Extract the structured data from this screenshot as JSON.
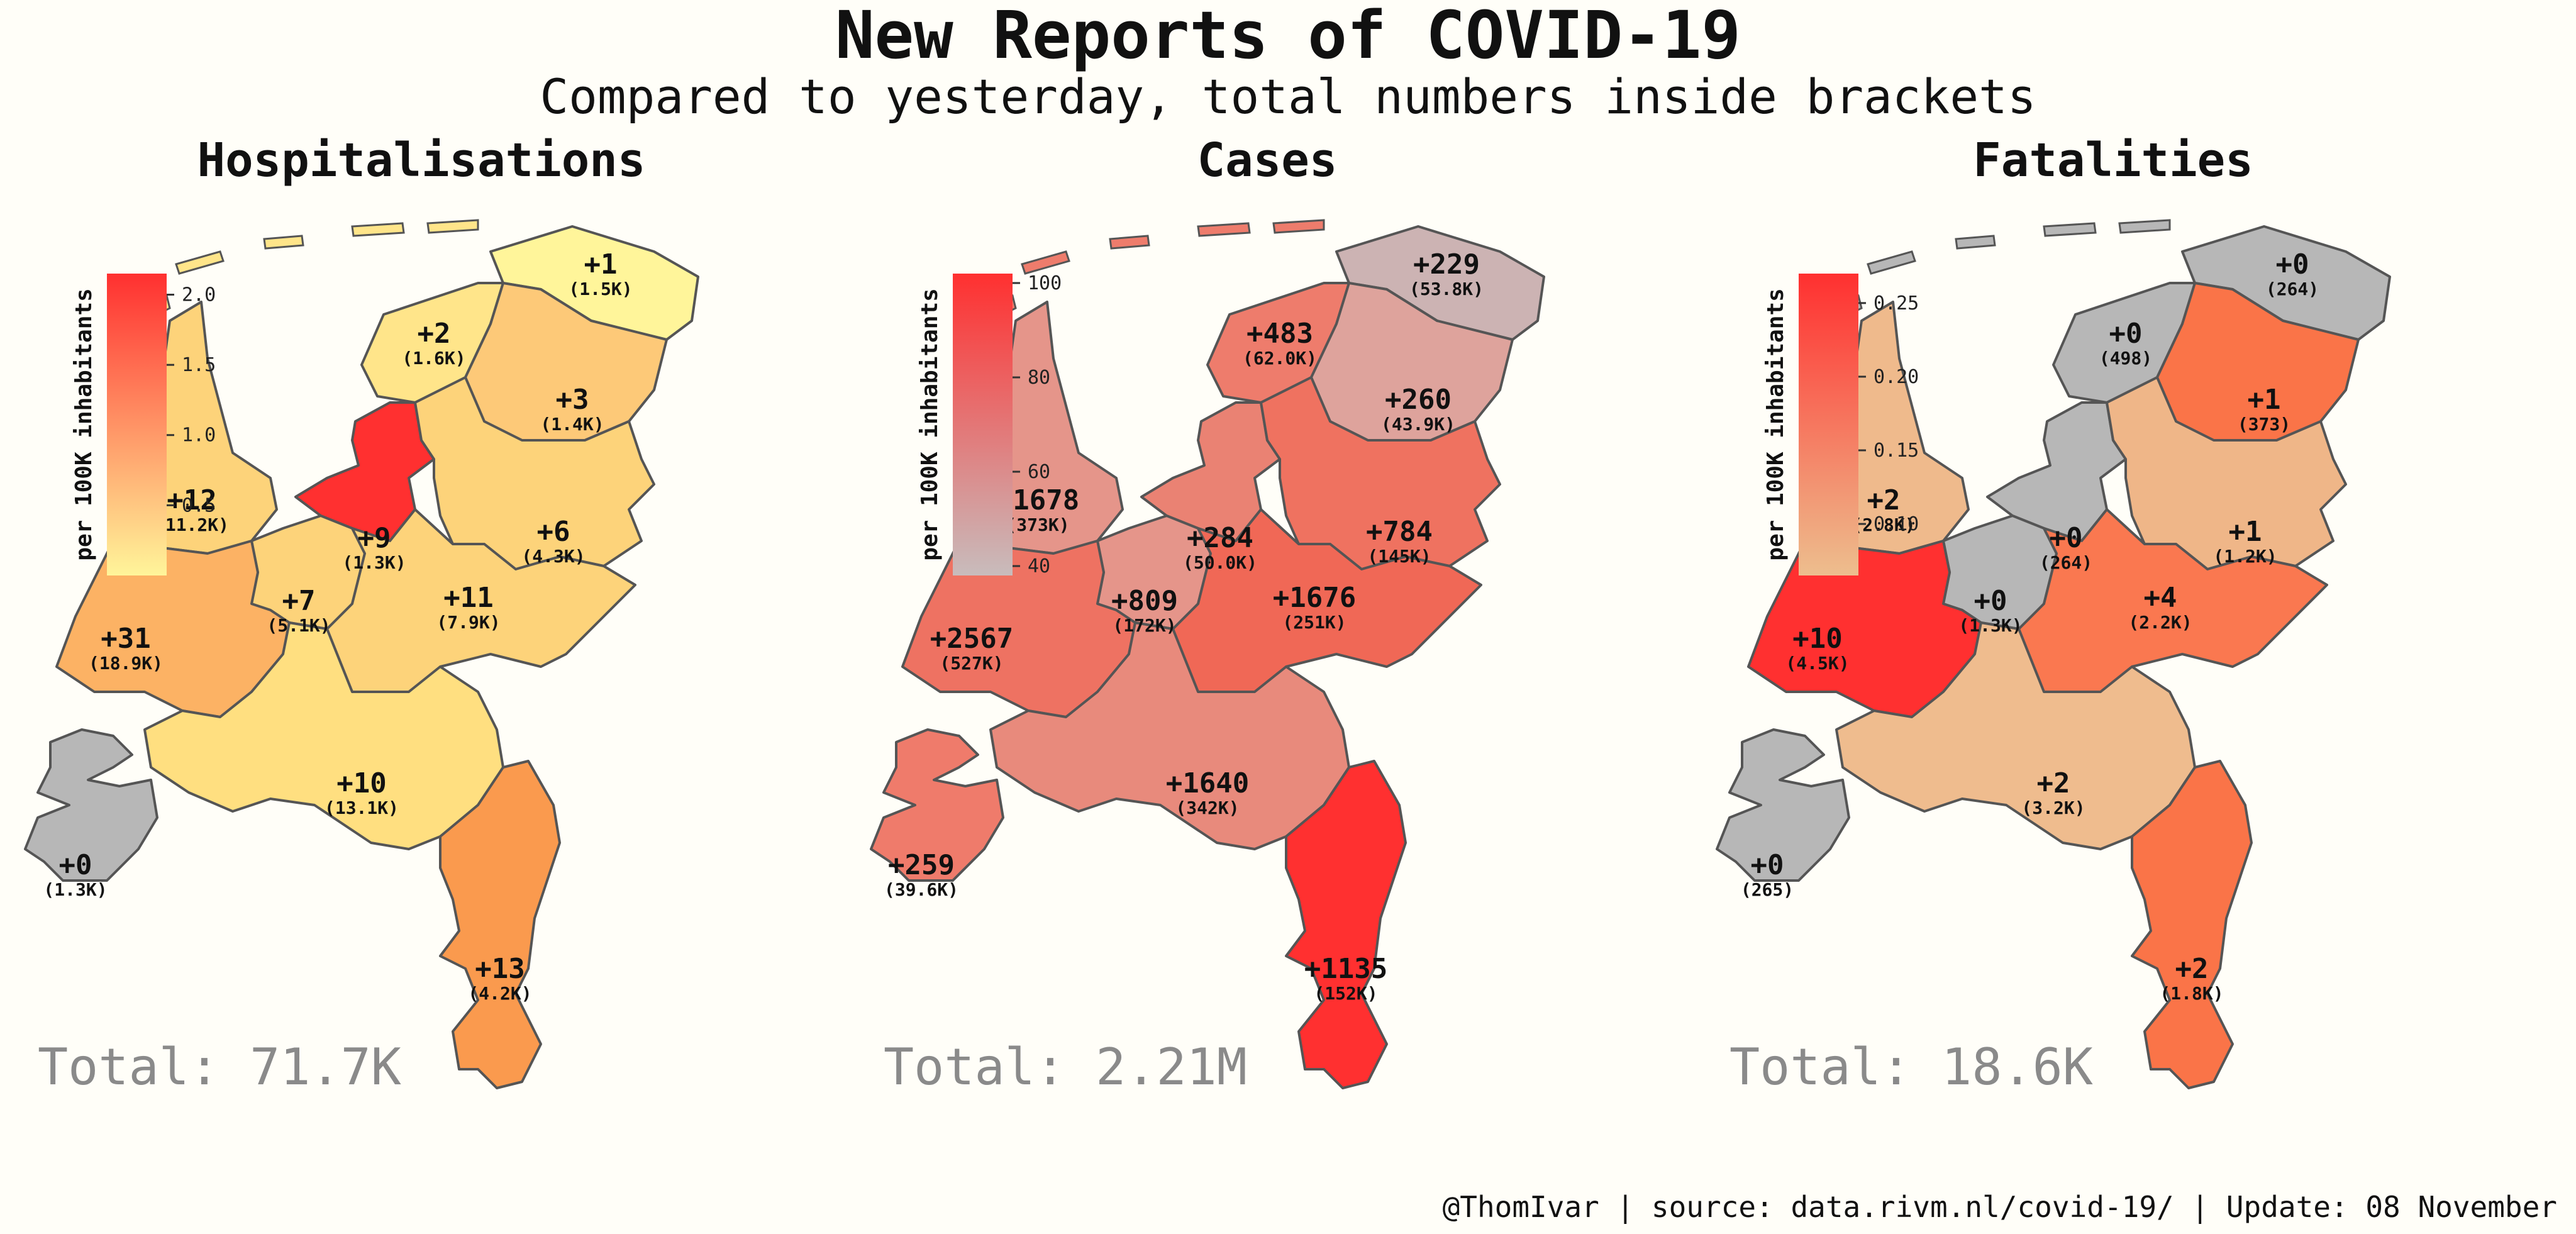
{
  "title": "New Reports of COVID-19",
  "subtitle": "Compared to yesterday, total numbers inside brackets",
  "footer": "@ThomIvar | source: data.rivm.nl/covid-19/ | Update: 08 November",
  "legend_label": "per 100K inhabitants",
  "panels": [
    {
      "name": "Hospitalisations",
      "total": "Total: 71.7K",
      "colorbar": {
        "min": 0.0,
        "max": 2.15,
        "ticks": [
          "0.5",
          "1.0",
          "1.5",
          "2.0"
        ],
        "tick_values": [
          0.5,
          1.0,
          1.5,
          2.0
        ],
        "color_low": "#fff59a",
        "color_high": "#ff3030"
      },
      "regions": {
        "groningen": {
          "delta": "+1",
          "total": "(1.5K)",
          "color": "#fff59a"
        },
        "friesland": {
          "delta": "+2",
          "total": "(1.6K)",
          "color": "#ffe58a"
        },
        "drenthe": {
          "delta": "+3",
          "total": "(1.4K)",
          "color": "#fdc978"
        },
        "noord_holland": {
          "delta": "+12",
          "total": "(11.2K)",
          "color": "#fdd37a"
        },
        "flevoland": {
          "delta": "+9",
          "total": "(1.3K)",
          "color": "#ff3030"
        },
        "overijssel": {
          "delta": "+6",
          "total": "(4.3K)",
          "color": "#fdd37a"
        },
        "utrecht": {
          "delta": "+7",
          "total": "(5.1K)",
          "color": "#fdd37a"
        },
        "gelderland": {
          "delta": "+11",
          "total": "(7.9K)",
          "color": "#fdd37a"
        },
        "zuid_holland": {
          "delta": "+31",
          "total": "(18.9K)",
          "color": "#fcb264"
        },
        "noord_brabant": {
          "delta": "+10",
          "total": "(13.1K)",
          "color": "#ffdf80"
        },
        "zeeland": {
          "delta": "+0",
          "total": "(1.3K)",
          "color": "#b7b7b7"
        },
        "limburg": {
          "delta": "+13",
          "total": "(4.2K)",
          "color": "#fa9a4e"
        }
      }
    },
    {
      "name": "Cases",
      "total": "Total: 2.21M",
      "colorbar": {
        "min": 38,
        "max": 102,
        "ticks": [
          "40",
          "60",
          "80",
          "100"
        ],
        "tick_values": [
          40,
          60,
          80,
          100
        ],
        "color_low": "#c8bcbc",
        "color_high": "#ff3030"
      },
      "regions": {
        "groningen": {
          "delta": "+229",
          "total": "(53.8K)",
          "color": "#ccb3b3"
        },
        "friesland": {
          "delta": "+483",
          "total": "(62.0K)",
          "color": "#ee7c6c"
        },
        "drenthe": {
          "delta": "+260",
          "total": "(43.9K)",
          "color": "#dea39c"
        },
        "noord_holland": {
          "delta": "+1678",
          "total": "(373K)",
          "color": "#e5958a"
        },
        "flevoland": {
          "delta": "+284",
          "total": "(50.0K)",
          "color": "#ea8273"
        },
        "overijssel": {
          "delta": "+784",
          "total": "(145K)",
          "color": "#ef7260"
        },
        "utrecht": {
          "delta": "+809",
          "total": "(172K)",
          "color": "#e5958a"
        },
        "gelderland": {
          "delta": "+1676",
          "total": "(251K)",
          "color": "#f06856"
        },
        "zuid_holland": {
          "delta": "+2567",
          "total": "(527K)",
          "color": "#ee7262"
        },
        "noord_brabant": {
          "delta": "+1640",
          "total": "(342K)",
          "color": "#e88a7c"
        },
        "zeeland": {
          "delta": "+259",
          "total": "(39.6K)",
          "color": "#ef7b6b"
        },
        "limburg": {
          "delta": "+1135",
          "total": "(152K)",
          "color": "#ff3030"
        }
      }
    },
    {
      "name": "Fatalities",
      "total": "Total: 18.6K",
      "colorbar": {
        "min": 0.065,
        "max": 0.27,
        "ticks": [
          "0.10",
          "0.15",
          "0.20",
          "0.25"
        ],
        "tick_values": [
          0.1,
          0.15,
          0.2,
          0.25
        ],
        "color_low": "#edbe8e",
        "color_high": "#ff3030"
      },
      "regions": {
        "groningen": {
          "delta": "+0",
          "total": "(264)",
          "color": "#b7b7b7"
        },
        "friesland": {
          "delta": "+0",
          "total": "(498)",
          "color": "#b7b7b7"
        },
        "drenthe": {
          "delta": "+1",
          "total": "(373)",
          "color": "#fa7448"
        },
        "noord_holland": {
          "delta": "+2",
          "total": "(2.8K)",
          "color": "#efba8c"
        },
        "flevoland": {
          "delta": "+0",
          "total": "(264)",
          "color": "#b7b7b7"
        },
        "overijssel": {
          "delta": "+1",
          "total": "(1.2K)",
          "color": "#efb688"
        },
        "utrecht": {
          "delta": "+0",
          "total": "(1.3K)",
          "color": "#b7b7b7"
        },
        "gelderland": {
          "delta": "+4",
          "total": "(2.2K)",
          "color": "#fa7850"
        },
        "zuid_holland": {
          "delta": "+10",
          "total": "(4.5K)",
          "color": "#ff3030"
        },
        "noord_brabant": {
          "delta": "+2",
          "total": "(3.2K)",
          "color": "#efbc8e"
        },
        "zeeland": {
          "delta": "+0",
          "total": "(265)",
          "color": "#b7b7b7"
        },
        "limburg": {
          "delta": "+2",
          "total": "(1.8K)",
          "color": "#fa7448"
        }
      }
    }
  ]
}
